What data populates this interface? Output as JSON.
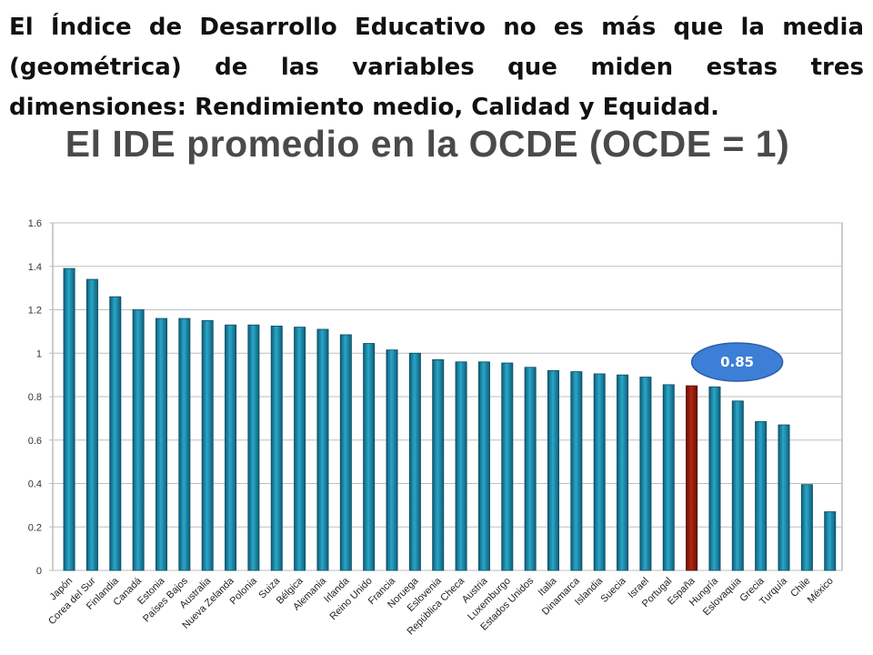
{
  "intro_text": "El Índice de Desarrollo Educativo no es más que la media (geométrica) de las  variables que miden estas tres dimensiones: Rendimiento medio, Calidad y Equidad.",
  "chart_data": {
    "type": "bar",
    "title": "El IDE promedio en la OCDE (OCDE = 1)",
    "categories": [
      "Japón",
      "Corea del Sur",
      "Finlandia",
      "Canadá",
      "Estonia",
      "Países Bajos",
      "Australia",
      "Nueva Zelanda",
      "Polonia",
      "Suiza",
      "Bélgica",
      "Alemania",
      "Irlanda",
      "Reino Unido",
      "Francia",
      "Noruega",
      "Eslovenia",
      "República Checa",
      "Austria",
      "Luxemburgo",
      "Estados Unidos",
      "Italia",
      "Dinamarca",
      "Islandia",
      "Suecia",
      "Israel",
      "Portugal",
      "España",
      "Hungría",
      "Eslovaquia",
      "Grecia",
      "Turquía",
      "Chile",
      "México"
    ],
    "values": [
      1.39,
      1.34,
      1.26,
      1.2,
      1.16,
      1.16,
      1.15,
      1.13,
      1.13,
      1.125,
      1.12,
      1.11,
      1.085,
      1.045,
      1.015,
      1.0,
      0.97,
      0.96,
      0.96,
      0.955,
      0.935,
      0.92,
      0.915,
      0.905,
      0.9,
      0.89,
      0.855,
      0.85,
      0.845,
      0.78,
      0.685,
      0.67,
      0.395,
      0.27
    ],
    "highlight_index": 27,
    "ylim": [
      0,
      1.6
    ],
    "yticks": [
      0,
      0.2,
      0.4,
      0.6,
      0.8,
      1,
      1.2,
      1.4,
      1.6
    ],
    "grid": true,
    "colors": {
      "bar": "#1b8fb0",
      "bar_dark": "#0d5e79",
      "highlight": "#8b1a0e",
      "callout": "#3d7fd6",
      "grid": "#bfbfbf"
    },
    "callout": {
      "label": "0.85"
    }
  }
}
